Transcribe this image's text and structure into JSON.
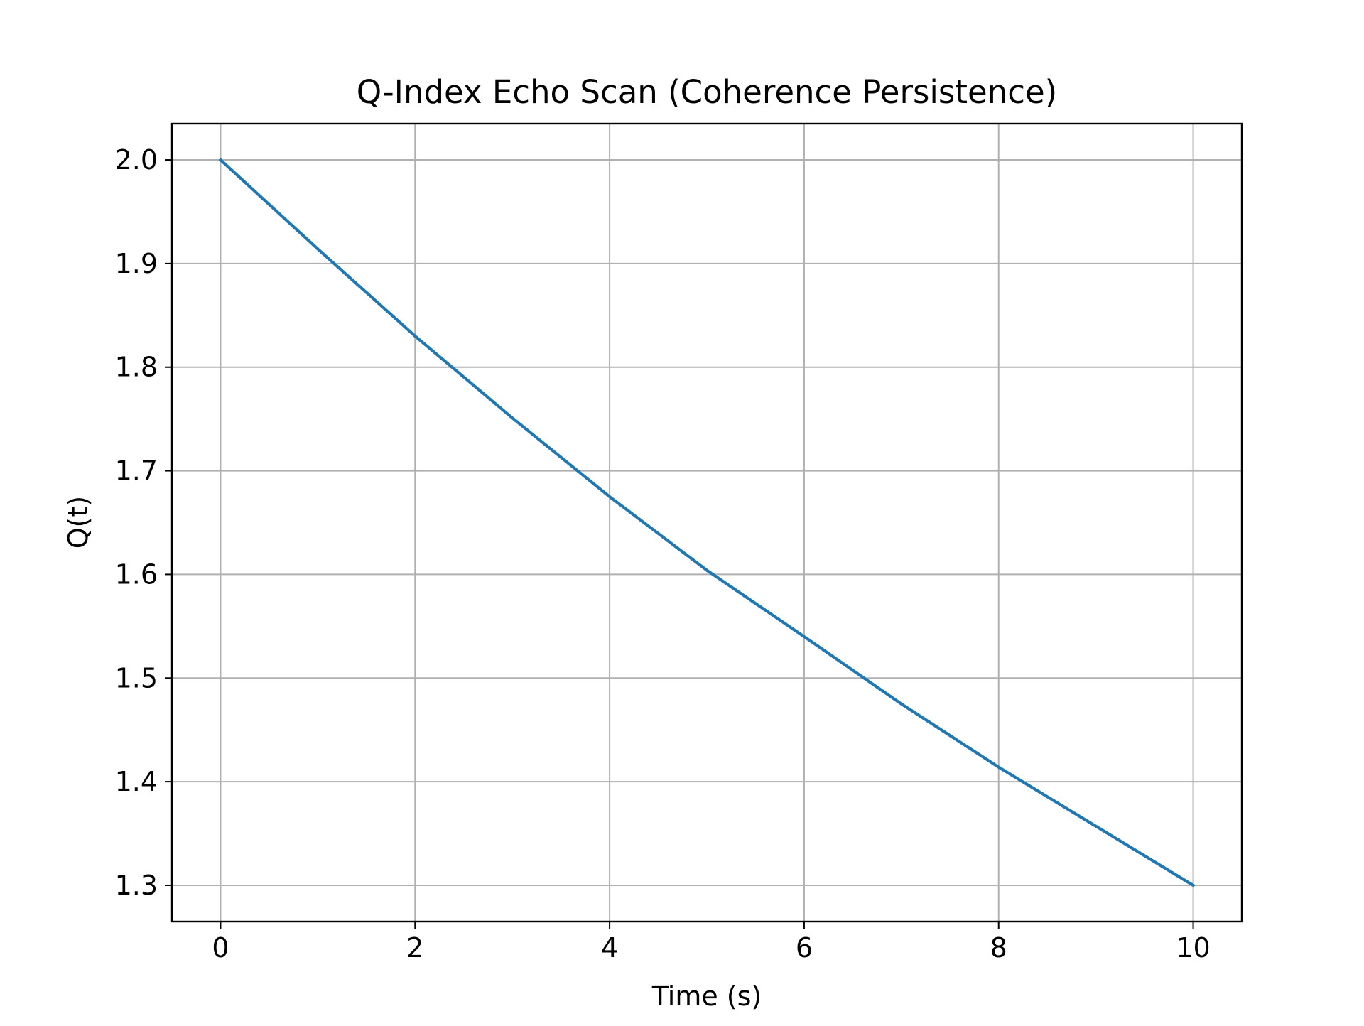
{
  "chart_data": {
    "type": "line",
    "title": "Q-Index Echo Scan (Coherence Persistence)",
    "xlabel": "Time (s)",
    "ylabel": "Q(t)",
    "xlim": [
      -0.5,
      10.5
    ],
    "ylim": [
      1.265,
      2.035
    ],
    "xticks": [
      0,
      2,
      4,
      6,
      8,
      10
    ],
    "yticks": [
      1.3,
      1.4,
      1.5,
      1.6,
      1.7,
      1.8,
      1.9,
      2.0
    ],
    "xtick_labels": [
      "0",
      "2",
      "4",
      "6",
      "8",
      "10"
    ],
    "ytick_labels": [
      "1.3",
      "1.4",
      "1.5",
      "1.6",
      "1.7",
      "1.8",
      "1.9",
      "2.0"
    ],
    "grid": true,
    "legend": false,
    "series": [
      {
        "color": "#1f77b4",
        "x": [
          0,
          1,
          2,
          3,
          4,
          5,
          6,
          7,
          8,
          9,
          10
        ],
        "y": [
          2.0,
          1.914,
          1.83,
          1.751,
          1.675,
          1.604,
          1.54,
          1.475,
          1.414,
          1.357,
          1.3
        ]
      }
    ]
  }
}
